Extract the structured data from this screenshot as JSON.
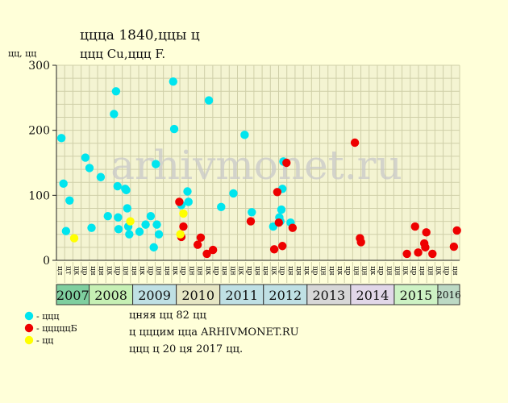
{
  "header": {
    "title_line1": "ццца 1840,ццы ц",
    "title_line2": "ццц Cu,ццц F."
  },
  "watermark": "arhivmonet.ru",
  "footer": {
    "line1": "цняя цц 82 цц",
    "line2": "ц цццим ццa ARHIVMONET.RU",
    "line3": "ццц ц 20 ця 2017 цц."
  },
  "legend": [
    {
      "label": "- ццц",
      "color": "#00e5ee"
    },
    {
      "label": "- цццццБ",
      "color": "#ee0000"
    },
    {
      "label": "- цц",
      "color": "#ffff00"
    }
  ],
  "colors": {
    "background": "#ffffd9",
    "plot_background": "#f4f4d2",
    "grid": "#cfcfa8",
    "year_2007": "#7fcf9f",
    "year_2008": "#c6f0b4",
    "year_2009": "#bfe0e4",
    "year_2010": "#e6e6c4",
    "year_2011": "#bfe0e4",
    "year_2012": "#bfe0e4",
    "year_2013": "#d7d7d7",
    "year_2014": "#e1d7e8",
    "year_2015": "#cdf2c4",
    "year_2016": "#bcd9c4"
  },
  "chart_data": {
    "type": "scatter",
    "ylabel": "цц, цц",
    "ylim": [
      0,
      300
    ],
    "yticks": [
      0,
      100,
      200,
      300
    ],
    "grid": true,
    "legend_position": "bottom-left",
    "x_unit": "months since Jan 2007 (column index, 4-month half-columns)",
    "columns": [
      "цл",
      "цт",
      "цк",
      "цр",
      "цн",
      "цн",
      "цк",
      "цр",
      "цн",
      "цн",
      "цк",
      "цр",
      "цн",
      "цн",
      "цк",
      "цр",
      "цн",
      "цн",
      "цк",
      "цр",
      "цн",
      "цн",
      "цк",
      "цр",
      "цн",
      "цн",
      "цк",
      "цр",
      "цн",
      "цн",
      "цк",
      "цр",
      "цн",
      "цн",
      "цк",
      "цр",
      "цн",
      "цн",
      "цк",
      "цр",
      "цн",
      "цн",
      "цк",
      "цр",
      "цн",
      "цн",
      "цк",
      "цр",
      "цн"
    ],
    "years": [
      {
        "label": "2007",
        "start": 0,
        "end": 3
      },
      {
        "label": "2008",
        "start": 3,
        "end": 7
      },
      {
        "label": "2009",
        "start": 7,
        "end": 11
      },
      {
        "label": "2010",
        "start": 11,
        "end": 15
      },
      {
        "label": "2011",
        "start": 15,
        "end": 19
      },
      {
        "label": "2012",
        "start": 19,
        "end": 23
      },
      {
        "label": "2013",
        "start": 23,
        "end": 27
      },
      {
        "label": "2014",
        "start": 27,
        "end": 31
      },
      {
        "label": "2015",
        "start": 31,
        "end": 35
      },
      {
        "label": "2016",
        "start": 35,
        "end": 37
      }
    ],
    "x_count": 37,
    "series": [
      {
        "name": "- ццц",
        "color": "#00e5ee",
        "points": [
          [
            0.25,
            188
          ],
          [
            0.45,
            118
          ],
          [
            0.7,
            45
          ],
          [
            1.05,
            92
          ],
          [
            2.6,
            158
          ],
          [
            3.0,
            142
          ],
          [
            3.2,
            50
          ],
          [
            4.1,
            128
          ],
          [
            4.8,
            68
          ],
          [
            5.4,
            225
          ],
          [
            5.6,
            260
          ],
          [
            5.75,
            114
          ],
          [
            5.8,
            66
          ],
          [
            5.85,
            48
          ],
          [
            6.5,
            110
          ],
          [
            6.6,
            108
          ],
          [
            6.7,
            80
          ],
          [
            6.8,
            52
          ],
          [
            6.9,
            40
          ],
          [
            7.9,
            44
          ],
          [
            8.5,
            55
          ],
          [
            9.0,
            68
          ],
          [
            9.3,
            20
          ],
          [
            9.5,
            148
          ],
          [
            9.6,
            55
          ],
          [
            9.8,
            40
          ],
          [
            11.2,
            275
          ],
          [
            11.3,
            202
          ],
          [
            12.0,
            85
          ],
          [
            12.6,
            106
          ],
          [
            12.7,
            90
          ],
          [
            14.7,
            246
          ],
          [
            15.9,
            82
          ],
          [
            17.1,
            103
          ],
          [
            18.2,
            193
          ],
          [
            18.9,
            74
          ],
          [
            21.0,
            52
          ],
          [
            21.6,
            66
          ],
          [
            21.7,
            60
          ],
          [
            21.8,
            78
          ],
          [
            21.9,
            110
          ],
          [
            22.0,
            152
          ],
          [
            22.7,
            58
          ]
        ]
      },
      {
        "name": "- цццццБ",
        "color": "#ee0000",
        "points": [
          [
            11.8,
            90
          ],
          [
            12.0,
            36
          ],
          [
            12.2,
            52
          ],
          [
            13.6,
            24
          ],
          [
            13.9,
            35
          ],
          [
            14.5,
            10
          ],
          [
            15.1,
            16
          ],
          [
            18.8,
            60
          ],
          [
            21.1,
            17
          ],
          [
            21.4,
            105
          ],
          [
            21.55,
            58
          ],
          [
            21.9,
            22
          ],
          [
            22.3,
            150
          ],
          [
            22.9,
            50
          ],
          [
            29.0,
            181
          ],
          [
            29.5,
            34
          ],
          [
            29.6,
            28
          ],
          [
            34.1,
            10
          ],
          [
            34.9,
            52
          ],
          [
            35.2,
            12
          ],
          [
            35.8,
            26
          ],
          [
            35.9,
            20
          ],
          [
            36.0,
            43
          ],
          [
            36.6,
            10
          ],
          [
            38.7,
            21
          ],
          [
            39.0,
            46
          ]
        ]
      },
      {
        "name": "- цц",
        "color": "#ffff00",
        "points": [
          [
            1.5,
            34
          ],
          [
            7.0,
            60
          ],
          [
            11.9,
            40
          ],
          [
            12.2,
            72
          ]
        ]
      }
    ]
  }
}
